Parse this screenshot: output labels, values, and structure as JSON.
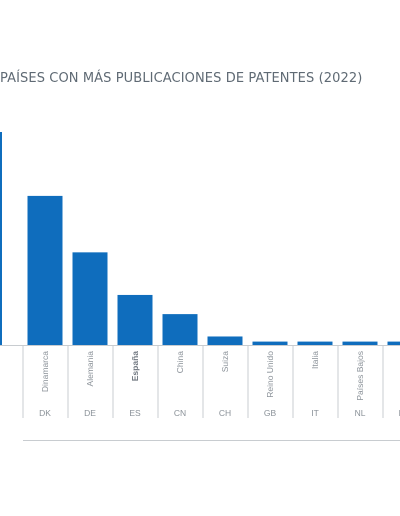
{
  "chart_data": {
    "type": "bar",
    "title": "PAÍSES CON MÁS PUBLICACIONES DE PATENTES (2022)",
    "categories": [
      "",
      "Dinamarca",
      "Alemania",
      "España",
      "China",
      "Suiza",
      "Reino Unido",
      "Italia",
      "Países Bajos",
      "Noruega"
    ],
    "codes": [
      "",
      "DK",
      "DE",
      "ES",
      "CN",
      "CH",
      "GB",
      "IT",
      "NL",
      "NO"
    ],
    "values": [
      100,
      70,
      43.5,
      23.5,
      14.5,
      4,
      1.6,
      1.6,
      1.6,
      1.6
    ],
    "highlight_category": "España",
    "ylim": [
      0,
      100
    ],
    "grid": false,
    "bar_color": "#0f6dbd",
    "axis_color": "#c8ccd0",
    "text_color": "#8a9198"
  }
}
